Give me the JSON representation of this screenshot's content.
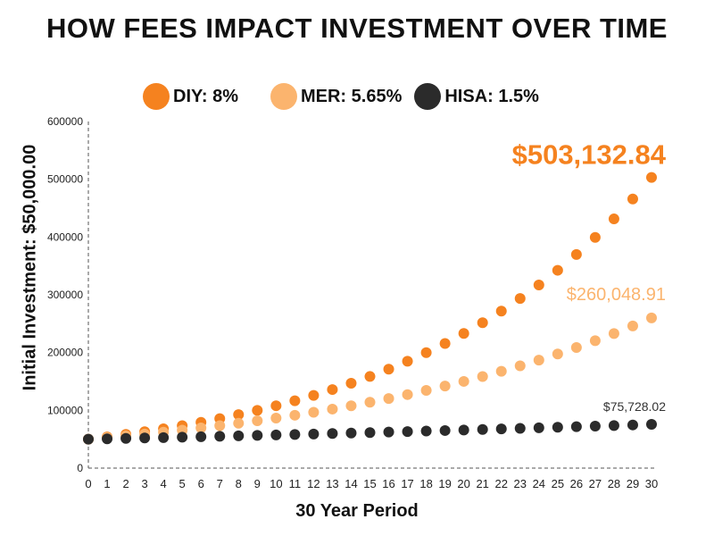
{
  "chart_data": {
    "type": "scatter",
    "title": "HOW FEES IMPACT INVESTMENT OVER TIME",
    "xlabel": "30 Year Period",
    "ylabel": "Initial Investment: $50,000.00",
    "xlim": [
      0,
      30
    ],
    "ylim": [
      0,
      600000
    ],
    "x": [
      0,
      1,
      2,
      3,
      4,
      5,
      6,
      7,
      8,
      9,
      10,
      11,
      12,
      13,
      14,
      15,
      16,
      17,
      18,
      19,
      20,
      21,
      22,
      23,
      24,
      25,
      26,
      27,
      28,
      29,
      30
    ],
    "y_ticks": [
      "0",
      "100000",
      "200000",
      "300000",
      "400000",
      "500000",
      "600000"
    ],
    "grid": false,
    "legend_position": "top",
    "series": [
      {
        "name": "DIY: 8%",
        "color": "#F5821F",
        "end_label": "$503,132.84",
        "values": [
          50000,
          54000,
          58320,
          62985.6,
          68024.4,
          73466.4,
          79343.7,
          85691.2,
          92546.5,
          99950.2,
          107946.2,
          116581.9,
          125908.5,
          135981.2,
          146859.7,
          158608.5,
          171297.2,
          185001.0,
          199801.0,
          215785.1,
          233048.0,
          251691.8,
          271827.2,
          293573.4,
          317059.2,
          342423.9,
          369817.8,
          399403.2,
          431355.5,
          465863.9,
          503132.84
        ]
      },
      {
        "name": "MER: 5.65%",
        "color": "#FBB46E",
        "end_label": "$260,048.91",
        "values": [
          50000,
          52825,
          55809.6,
          58962.9,
          62294.3,
          65813.9,
          69532.4,
          73461.0,
          77611.5,
          81996.6,
          86629.4,
          91523.9,
          96695.0,
          102158.3,
          107930.2,
          114028.2,
          120470.8,
          127277.4,
          134468.6,
          142066.1,
          150092.8,
          158573.1,
          167532.5,
          176998.1,
          186998.5,
          197563.9,
          208726.3,
          220519.3,
          232978.6,
          246141.9,
          260048.91
        ]
      },
      {
        "name": "HISA: 1.5%",
        "color": "#2B2B2B",
        "end_label": "$75,728.02",
        "values": [
          50000,
          50697,
          51404,
          52120,
          52847,
          53584,
          54331,
          55088,
          55856,
          56635,
          57424,
          58225,
          59037,
          59860,
          60694,
          61540,
          62398,
          63268,
          64150,
          65045,
          65951,
          66871,
          67803,
          68748,
          69707,
          70679,
          71664,
          72663,
          73676,
          74703,
          75728.02
        ]
      }
    ]
  }
}
